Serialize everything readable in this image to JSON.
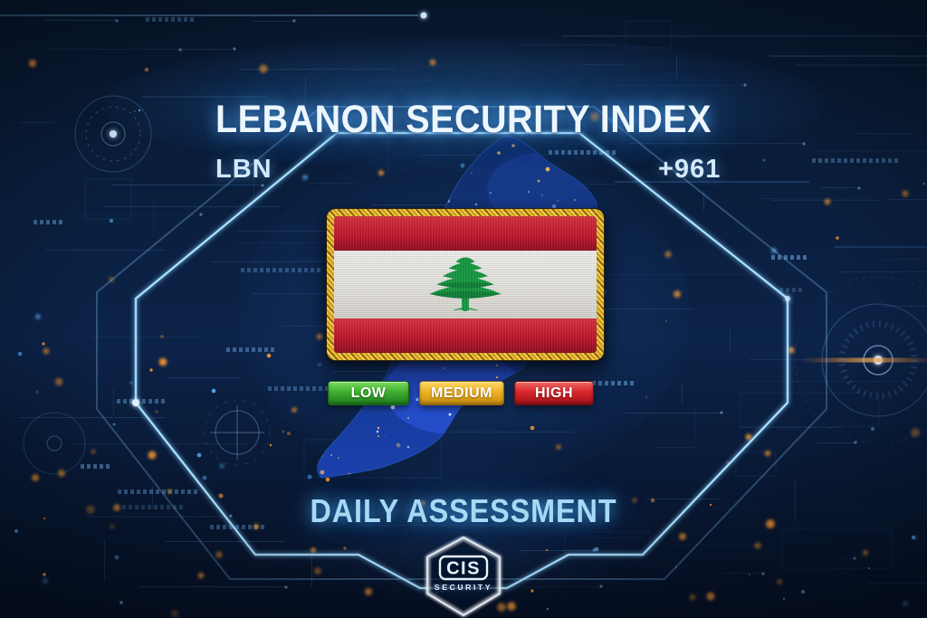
{
  "header": {
    "title": "LEBANON SECURITY INDEX",
    "country_code": "LBN",
    "dialing_code": "+961"
  },
  "levels": [
    {
      "label": "LOW",
      "color": "#3fae32",
      "color_light": "#7ddb5e",
      "color_dark": "#1f7d1d",
      "border": "#176a17"
    },
    {
      "label": "MEDIUM",
      "color": "#eeb222",
      "color_light": "#ffd967",
      "color_dark": "#c68c10",
      "border": "#93660a"
    },
    {
      "label": "HIGH",
      "color": "#d8262c",
      "color_light": "#f06a64",
      "color_dark": "#9e1118",
      "border": "#700c10"
    }
  ],
  "assessment": {
    "label": "DAILY ASSESSMENT"
  },
  "logo": {
    "name": "CIS",
    "subtitle": "SECURITY"
  },
  "flag": {
    "country": "Lebanon",
    "red": "#c2162d",
    "white": "#e9e7e2",
    "cedar_green": "#169a43",
    "border_gold": "#e2ae25"
  },
  "theme": {
    "background": "#0a1e3c",
    "accent_glow": "#8fd8ff",
    "bokeh_orange": "#ff9b2f",
    "circuit_blue": "#4d8fd6"
  }
}
